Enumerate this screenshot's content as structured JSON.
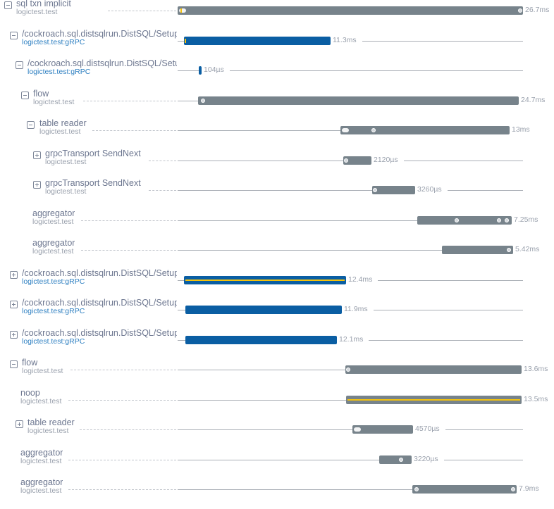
{
  "colors": {
    "span_gray": "#77838b",
    "span_blue": "#0a5ea3",
    "highlight_yellow": "#f4c20d",
    "grpc_link": "#2d7fc1"
  },
  "spans": [
    {
      "title": "sql txn implicit",
      "service": "logictest.test",
      "duration": "26.7ms",
      "toggle": "collapse",
      "color": "gray"
    },
    {
      "title": "/cockroach.sql.distsqlrun.DistSQL/SetupFlow",
      "service": "logictest.test:gRPC",
      "duration": "11.3ms",
      "toggle": "collapse",
      "color": "blue"
    },
    {
      "title": "/cockroach.sql.distsqlrun.DistSQL/SetupFlow",
      "service": "logictest.test:gRPC",
      "duration": "104µs",
      "toggle": "collapse",
      "color": "blue"
    },
    {
      "title": "flow",
      "service": "logictest.test",
      "duration": "24.7ms",
      "toggle": "collapse",
      "color": "gray"
    },
    {
      "title": "table reader",
      "service": "logictest.test",
      "duration": "13ms",
      "toggle": "collapse",
      "color": "gray"
    },
    {
      "title": "grpcTransport SendNext",
      "service": "logictest.test",
      "duration": "2120µs",
      "toggle": "expand",
      "color": "gray"
    },
    {
      "title": "grpcTransport SendNext",
      "service": "logictest.test",
      "duration": "3260µs",
      "toggle": "expand",
      "color": "gray"
    },
    {
      "title": "aggregator",
      "service": "logictest.test",
      "duration": "7.25ms",
      "toggle": "none",
      "color": "gray"
    },
    {
      "title": "aggregator",
      "service": "logictest.test",
      "duration": "5.42ms",
      "toggle": "none",
      "color": "gray"
    },
    {
      "title": "/cockroach.sql.distsqlrun.DistSQL/SetupFlow",
      "service": "logictest.test:gRPC",
      "duration": "12.4ms",
      "toggle": "expand",
      "color": "blue"
    },
    {
      "title": "/cockroach.sql.distsqlrun.DistSQL/SetupFlow",
      "service": "logictest.test:gRPC",
      "duration": "11.9ms",
      "toggle": "expand",
      "color": "blue"
    },
    {
      "title": "/cockroach.sql.distsqlrun.DistSQL/SetupFlow",
      "service": "logictest.test:gRPC",
      "duration": "12.1ms",
      "toggle": "expand",
      "color": "blue"
    },
    {
      "title": "flow",
      "service": "logictest.test",
      "duration": "13.6ms",
      "toggle": "collapse",
      "color": "gray"
    },
    {
      "title": "noop",
      "service": "logictest.test",
      "duration": "13.5ms",
      "toggle": "none",
      "color": "gray"
    },
    {
      "title": "table reader",
      "service": "logictest.test",
      "duration": "4570µs",
      "toggle": "expand",
      "color": "gray"
    },
    {
      "title": "aggregator",
      "service": "logictest.test",
      "duration": "3220µs",
      "toggle": "none",
      "color": "gray"
    },
    {
      "title": "aggregator",
      "service": "logictest.test",
      "duration": "7.9ms",
      "toggle": "none",
      "color": "gray"
    }
  ]
}
